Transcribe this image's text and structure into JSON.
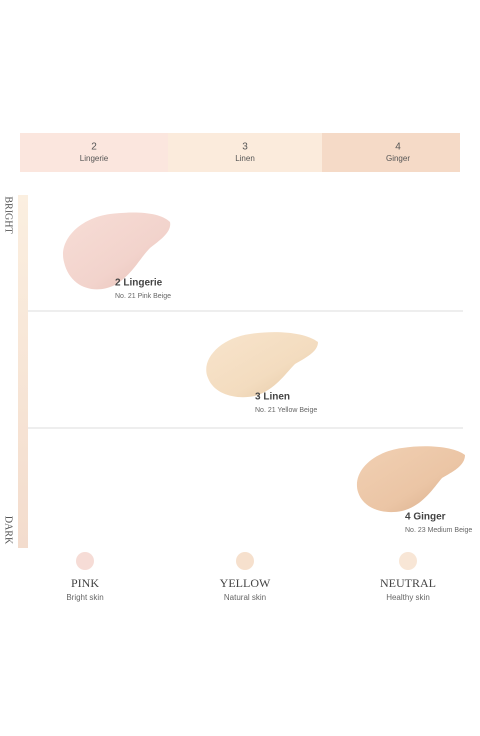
{
  "shade_bar": [
    {
      "number": "2",
      "name": "Lingerie"
    },
    {
      "number": "3",
      "name": "Linen"
    },
    {
      "number": "4",
      "name": "Ginger"
    }
  ],
  "scale": {
    "top": "BRIGHT",
    "bottom": "DARK"
  },
  "shades": [
    {
      "name": "2 Lingerie",
      "detail": "No. 21 Pink Beige"
    },
    {
      "name": "3 Linen",
      "detail": "No. 21 Yellow Beige"
    },
    {
      "name": "4 Ginger",
      "detail": "No. 23 Medium Beige"
    }
  ],
  "undertones": [
    {
      "name": "PINK",
      "skin": "Bright skin"
    },
    {
      "name": "YELLOW",
      "skin": "Natural skin"
    },
    {
      "name": "NEUTRAL",
      "skin": "Healthy skin"
    }
  ]
}
